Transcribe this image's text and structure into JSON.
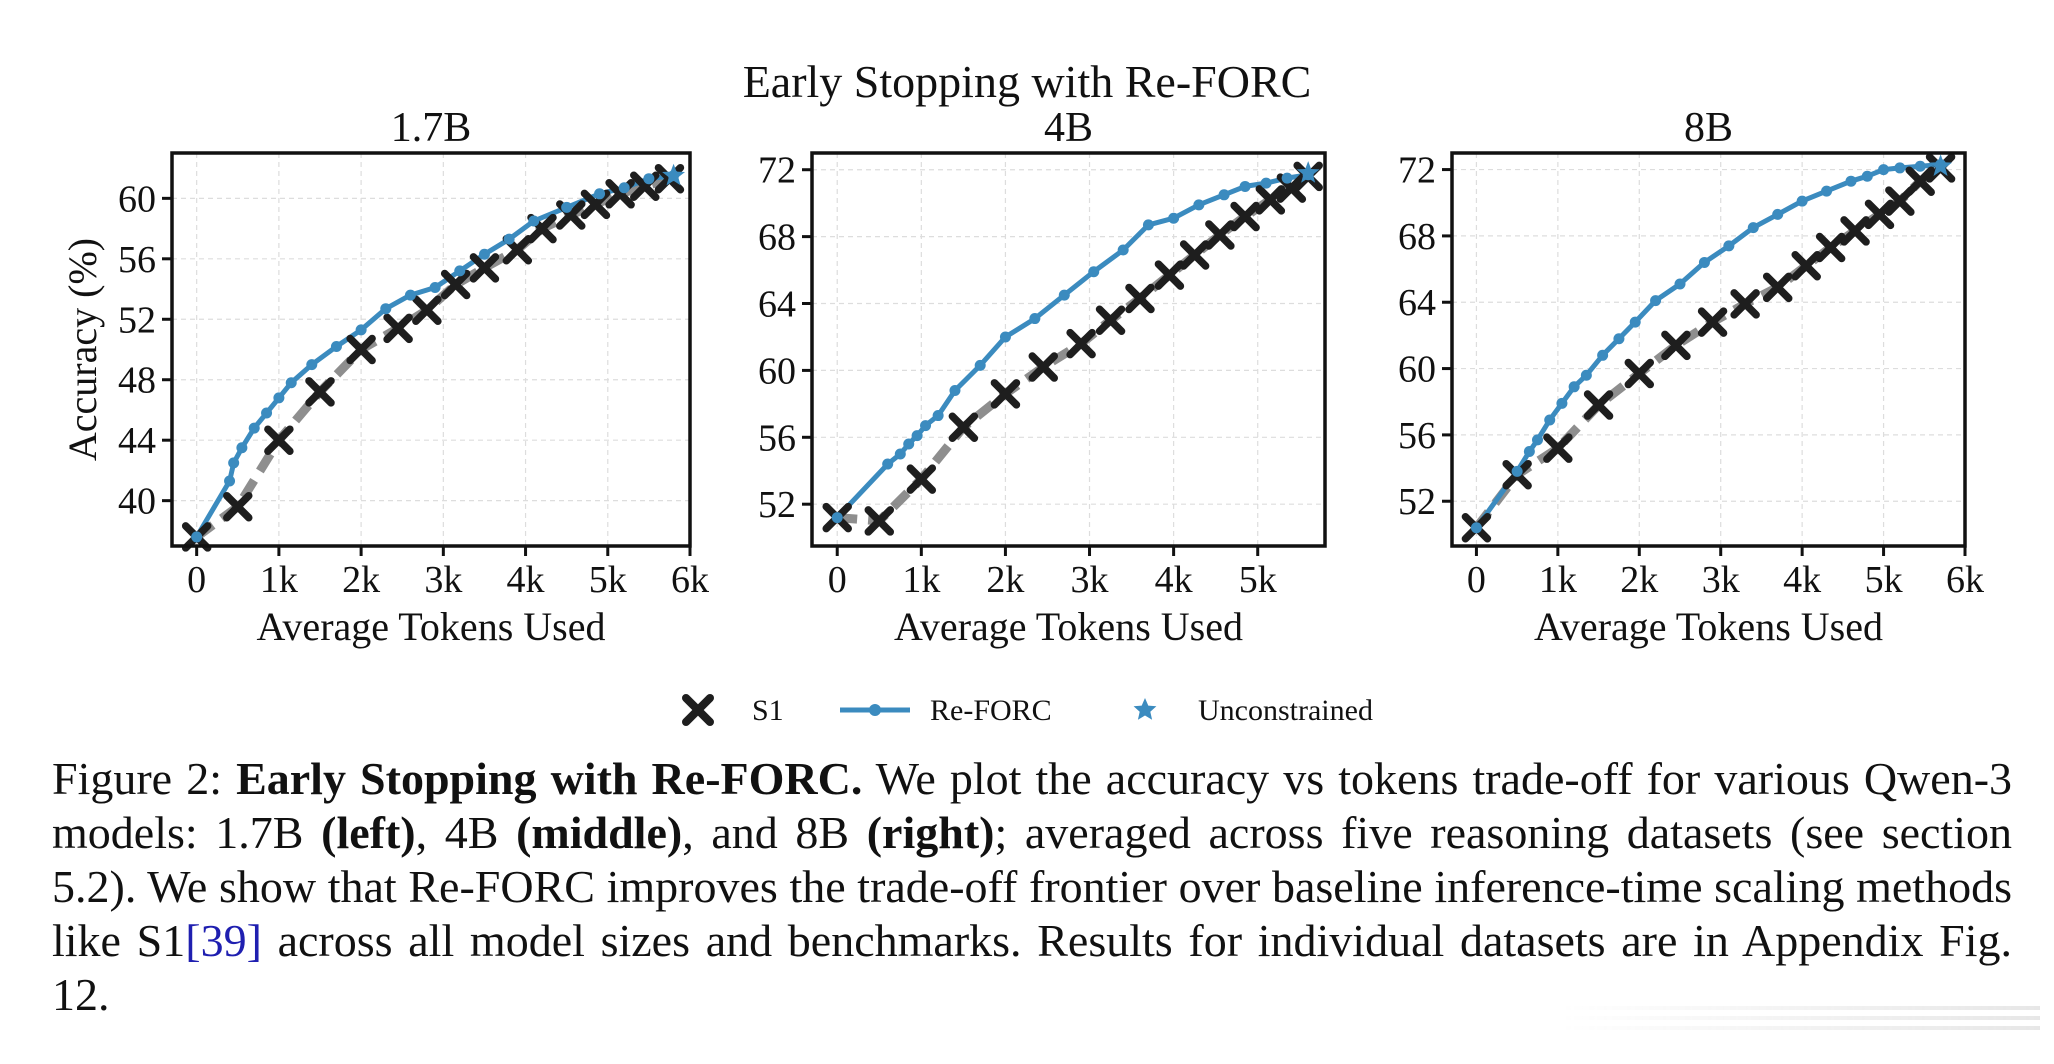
{
  "figure": {
    "suptitle": "Early Stopping with Re-FORC",
    "legend": [
      {
        "key": "s1",
        "label": "S1"
      },
      {
        "key": "reforc",
        "label": "Re-FORC"
      },
      {
        "key": "unconstrained",
        "label": "Unconstrained"
      }
    ],
    "colors": {
      "reforc": "#3b8bbf",
      "s1_marker": "#1e1e1e",
      "s1_line": "#7a7a7a",
      "unconstrained": "#3b8bbf",
      "grid": "#dddddd",
      "axis": "#111111"
    }
  },
  "chart_data": [
    {
      "type": "line",
      "title": "1.7B",
      "xlabel": "Average Tokens Used",
      "ylabel": "Accuracy (%)",
      "xlim": [
        -300,
        6000
      ],
      "ylim": [
        37,
        63
      ],
      "xticks": [
        0,
        1000,
        2000,
        3000,
        4000,
        5000,
        6000
      ],
      "xtick_labels": [
        "0",
        "1k",
        "2k",
        "3k",
        "4k",
        "5k",
        "6k"
      ],
      "yticks": [
        40,
        44,
        48,
        52,
        56,
        60
      ],
      "ytick_labels": [
        "40",
        "44",
        "48",
        "52",
        "56",
        "60"
      ],
      "grid": true,
      "series": [
        {
          "name": "S1",
          "x": [
            0,
            500,
            1000,
            1500,
            2000,
            2450,
            2800,
            3150,
            3500,
            3900,
            4200,
            4550,
            4850,
            5150,
            5450,
            5750
          ],
          "y": [
            37.6,
            39.6,
            44.0,
            47.2,
            50.0,
            51.4,
            52.6,
            54.3,
            55.4,
            56.6,
            58.0,
            58.9,
            59.6,
            60.3,
            60.8,
            61.3
          ]
        },
        {
          "name": "Re-FORC",
          "x": [
            0,
            400,
            450,
            550,
            700,
            850,
            1000,
            1150,
            1400,
            1700,
            2000,
            2300,
            2600,
            2900,
            3200,
            3500,
            3800,
            4100,
            4500,
            4900,
            5200,
            5500,
            5800
          ],
          "y": [
            37.6,
            41.3,
            42.5,
            43.5,
            44.8,
            45.8,
            46.8,
            47.8,
            49.0,
            50.2,
            51.3,
            52.7,
            53.6,
            54.1,
            55.2,
            56.3,
            57.3,
            58.5,
            59.4,
            60.3,
            60.7,
            61.3,
            61.5
          ]
        },
        {
          "name": "Unconstrained",
          "x": [
            5800
          ],
          "y": [
            61.5
          ]
        }
      ]
    },
    {
      "type": "line",
      "title": "4B",
      "xlabel": "Average Tokens Used",
      "ylabel": "",
      "xlim": [
        -300,
        5800
      ],
      "ylim": [
        49.5,
        73
      ],
      "xticks": [
        0,
        1000,
        2000,
        3000,
        4000,
        5000
      ],
      "xtick_labels": [
        "0",
        "1k",
        "2k",
        "3k",
        "4k",
        "5k"
      ],
      "yticks": [
        52,
        56,
        60,
        64,
        68,
        72
      ],
      "ytick_labels": [
        "52",
        "56",
        "60",
        "64",
        "68",
        "72"
      ],
      "grid": true,
      "series": [
        {
          "name": "S1",
          "x": [
            0,
            500,
            1000,
            1500,
            2000,
            2450,
            2900,
            3250,
            3600,
            3950,
            4250,
            4550,
            4850,
            5150,
            5400,
            5600
          ],
          "y": [
            51.2,
            51.0,
            53.5,
            56.6,
            58.6,
            60.2,
            61.6,
            63.0,
            64.3,
            65.7,
            66.9,
            68.1,
            69.2,
            70.2,
            70.9,
            71.6
          ]
        },
        {
          "name": "Re-FORC",
          "x": [
            0,
            600,
            750,
            850,
            950,
            1050,
            1200,
            1400,
            1700,
            2000,
            2350,
            2700,
            3050,
            3400,
            3700,
            4000,
            4300,
            4600,
            4850,
            5100,
            5350,
            5600
          ],
          "y": [
            51.2,
            54.4,
            55.0,
            55.6,
            56.1,
            56.7,
            57.3,
            58.8,
            60.3,
            62.0,
            63.1,
            64.5,
            65.9,
            67.2,
            68.7,
            69.1,
            69.9,
            70.5,
            71.0,
            71.2,
            71.5,
            71.7
          ]
        },
        {
          "name": "Unconstrained",
          "x": [
            5600
          ],
          "y": [
            71.8
          ]
        }
      ]
    },
    {
      "type": "line",
      "title": "8B",
      "xlabel": "Average Tokens Used",
      "ylabel": "",
      "xlim": [
        -300,
        6000
      ],
      "ylim": [
        49.3,
        73
      ],
      "xticks": [
        0,
        1000,
        2000,
        3000,
        4000,
        5000,
        6000
      ],
      "xtick_labels": [
        "0",
        "1k",
        "2k",
        "3k",
        "4k",
        "5k",
        "6k"
      ],
      "yticks": [
        52,
        56,
        60,
        64,
        68,
        72
      ],
      "ytick_labels": [
        "52",
        "56",
        "60",
        "64",
        "68",
        "72"
      ],
      "grid": true,
      "series": [
        {
          "name": "S1",
          "x": [
            0,
            500,
            1000,
            1500,
            2000,
            2450,
            2900,
            3300,
            3700,
            4050,
            4350,
            4650,
            4950,
            5200,
            5450,
            5700
          ],
          "y": [
            50.4,
            53.6,
            55.2,
            57.8,
            59.7,
            61.4,
            62.8,
            63.9,
            64.9,
            66.2,
            67.3,
            68.3,
            69.3,
            70.1,
            71.3,
            72.1
          ]
        },
        {
          "name": "Re-FORC",
          "x": [
            0,
            500,
            650,
            750,
            900,
            1050,
            1200,
            1350,
            1550,
            1750,
            1950,
            2200,
            2500,
            2800,
            3100,
            3400,
            3700,
            4000,
            4300,
            4600,
            4800,
            5000,
            5200,
            5450,
            5700
          ],
          "y": [
            50.4,
            53.8,
            55.0,
            55.7,
            56.9,
            57.9,
            58.9,
            59.6,
            60.8,
            61.8,
            62.8,
            64.1,
            65.1,
            66.4,
            67.4,
            68.5,
            69.3,
            70.1,
            70.7,
            71.3,
            71.6,
            72.0,
            72.1,
            72.2,
            72.3
          ]
        },
        {
          "name": "Unconstrained",
          "x": [
            5700
          ],
          "y": [
            72.2
          ]
        }
      ]
    }
  ],
  "caption": {
    "label": "Figure 2:",
    "bold_title": "Early Stopping with Re-FORC.",
    "t1": " We plot the accuracy vs tokens trade-off for various Qwen-3 models: 1.7B ",
    "b_left": "(left)",
    "t2": ", 4B ",
    "b_middle": "(middle)",
    "t3": ", and 8B ",
    "b_right": "(right)",
    "t4": "; averaged across five reasoning datasets (see section 5.2). We show that Re-FORC improves the trade-off frontier over baseline inference-time scaling methods like S1",
    "cite": "[39]",
    "t5": " across all model sizes and benchmarks. Results for individual datasets are in Appendix Fig. 12."
  }
}
